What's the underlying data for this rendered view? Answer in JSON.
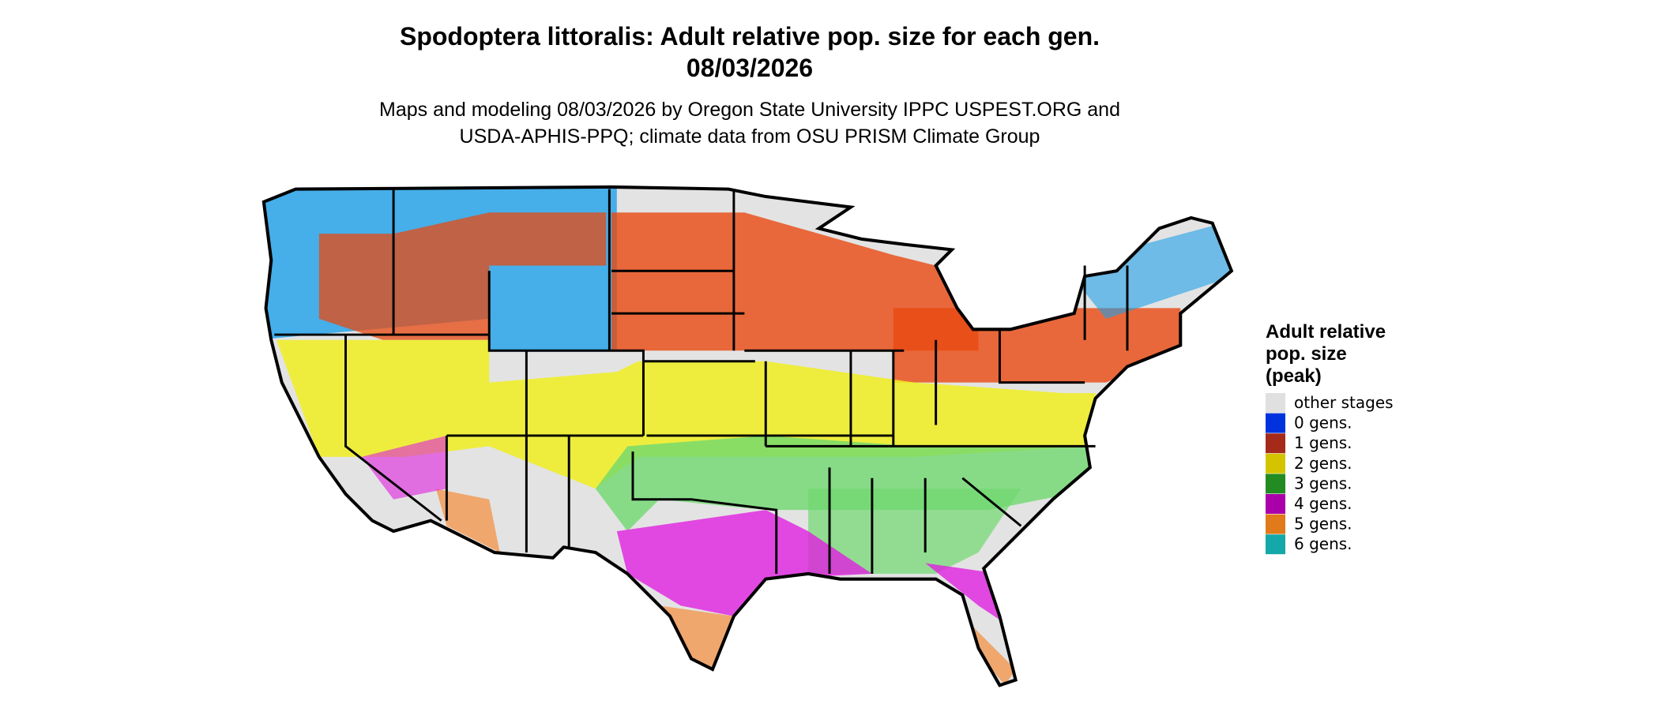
{
  "header": {
    "title_line1": "Spodoptera littoralis: Adult relative pop. size for each gen.",
    "title_line2": "08/03/2026",
    "subtitle_line1": "Maps and modeling 08/03/2026 by Oregon State University IPPC USPEST.ORG and",
    "subtitle_line2": "USDA-APHIS-PPQ; climate data from OSU PRISM Climate Group"
  },
  "legend": {
    "title_lines": [
      "Adult relative",
      "pop. size",
      "(peak)"
    ],
    "items": [
      {
        "label": "other stages",
        "color": "#e0e0e0"
      },
      {
        "label": "0 gens.",
        "color": "#0033dd"
      },
      {
        "label": "1 gens.",
        "color": "#a52a1a"
      },
      {
        "label": "2 gens.",
        "color": "#d4c400"
      },
      {
        "label": "3 gens.",
        "color": "#228b22"
      },
      {
        "label": "4 gens.",
        "color": "#aa00aa"
      },
      {
        "label": "5 gens.",
        "color": "#e07a1a"
      },
      {
        "label": "6 gens.",
        "color": "#14a8a8"
      }
    ]
  }
}
